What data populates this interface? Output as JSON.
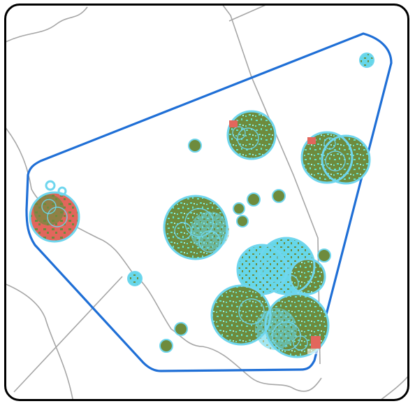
{
  "map": {
    "type": "coverage-map",
    "colors": {
      "background": "#ffffff",
      "frame": "#000000",
      "boundary_lines": "#a6a6a6",
      "coverage_hull": "#1f6fd6",
      "site_ring": "#6fd6ee",
      "coverage_fill_primary": "#6e8b3d",
      "coverage_fill_speckle": "#66e3c9",
      "coverage_fill_hot": "#e2665c"
    },
    "icons": {
      "map_frame": "map-frame-icon"
    },
    "sites": {
      "count_visible": 23
    }
  }
}
